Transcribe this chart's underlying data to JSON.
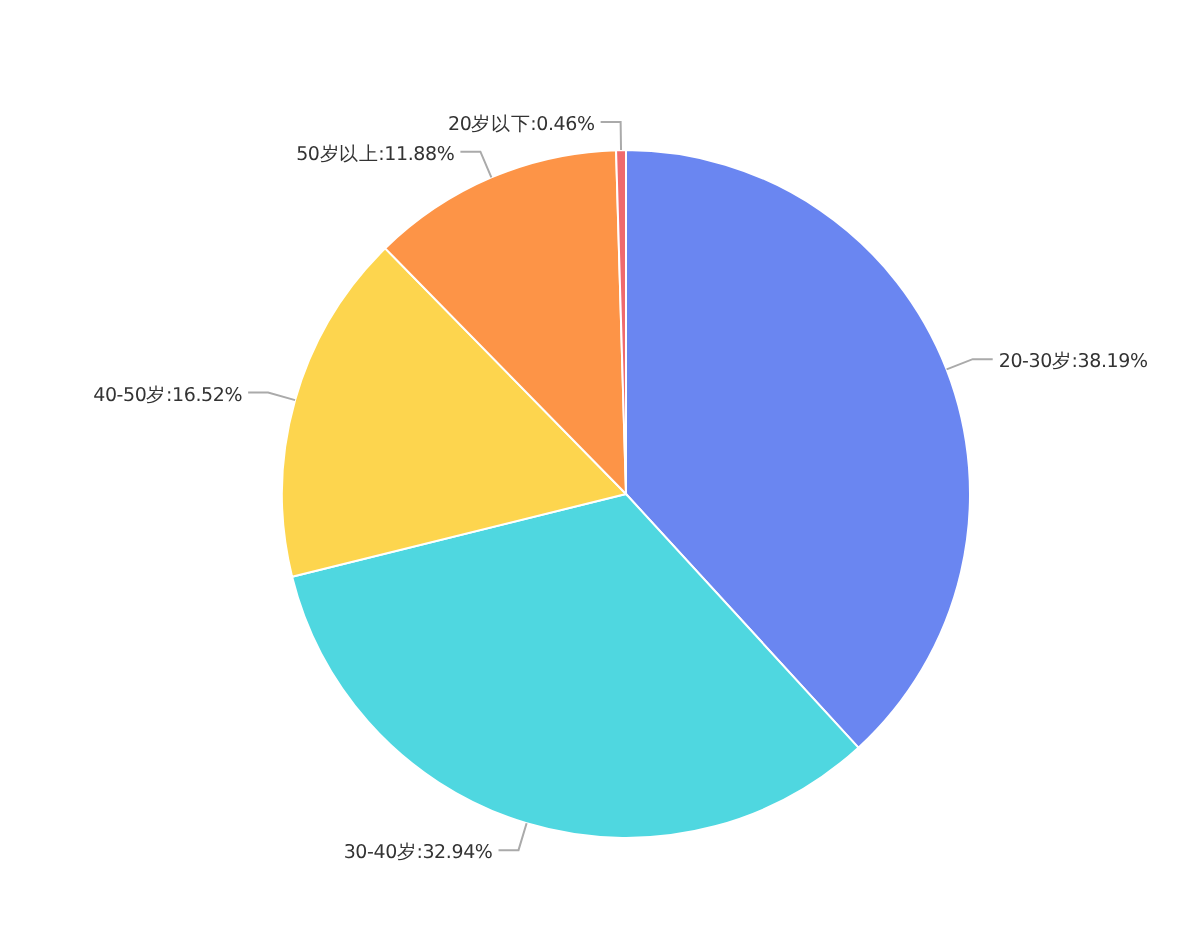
{
  "chart_data": {
    "type": "pie",
    "categories": [
      "20-30岁",
      "30-40岁",
      "40-50岁",
      "50岁以上",
      "20岁以下"
    ],
    "values": [
      38.19,
      32.94,
      16.52,
      11.88,
      0.46
    ],
    "value_labels": [
      "38.19%",
      "32.94%",
      "16.52%",
      "11.88%",
      "0.46%"
    ],
    "colors": [
      "#6a86f1",
      "#4fd7e0",
      "#fdd54e",
      "#fd9447",
      "#f06a6e"
    ],
    "legend": false
  }
}
